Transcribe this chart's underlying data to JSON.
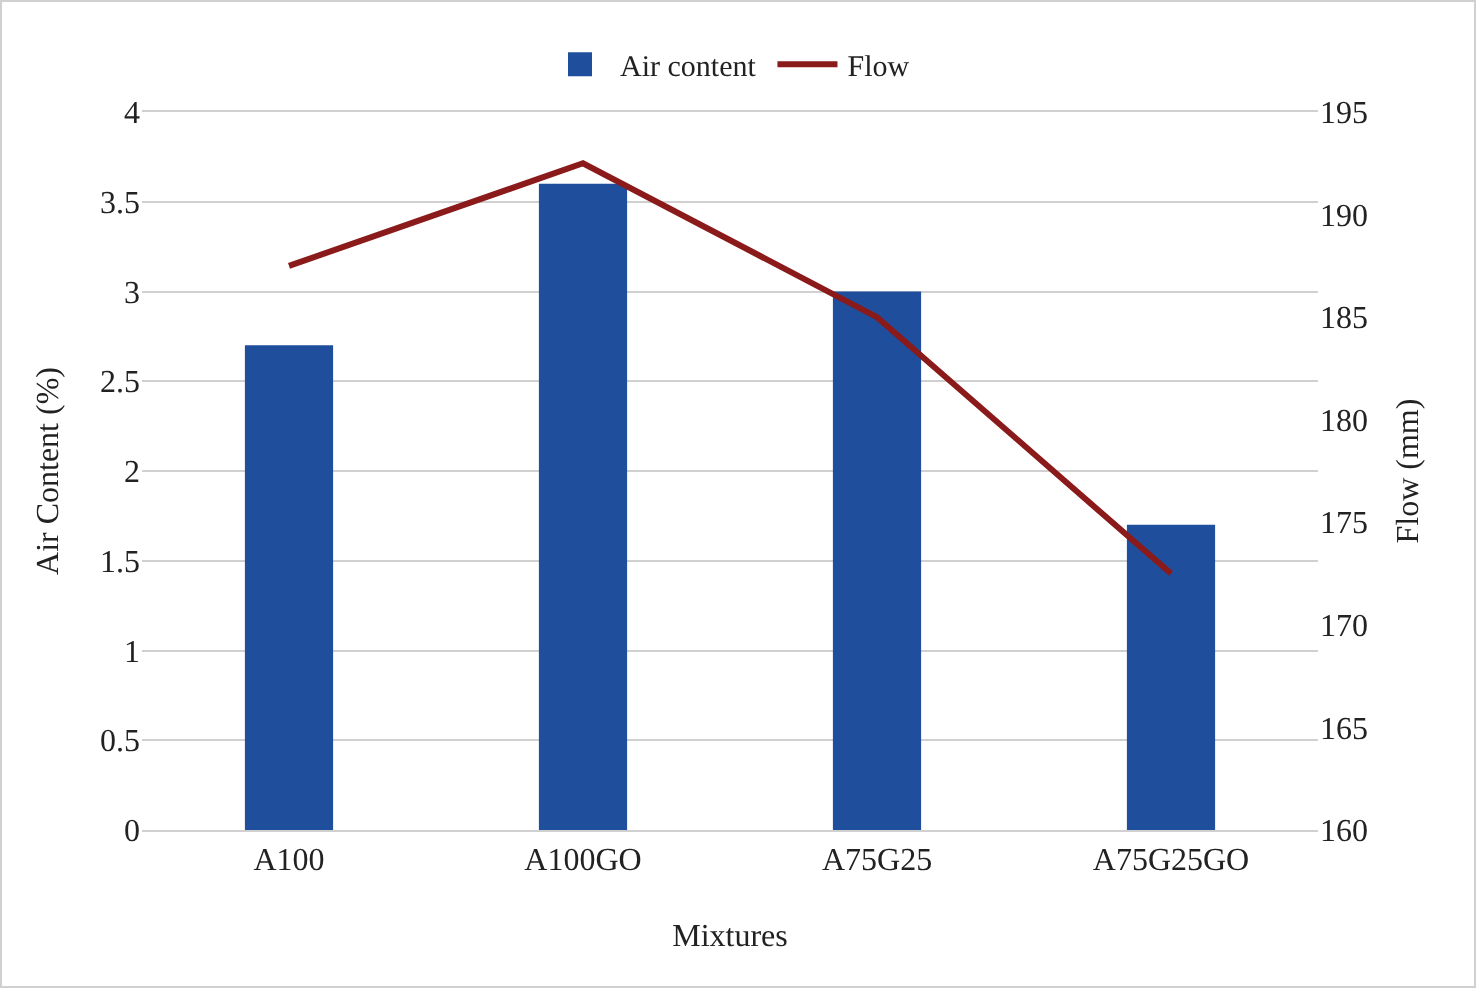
{
  "chart_data": {
    "type": "bar",
    "categories": [
      "A100",
      "A100GO",
      "A75G25",
      "A75G25GO"
    ],
    "xlabel": "Mixtures",
    "ylabel": "Air Content (%)",
    "y2label": "Flow (mm)",
    "series": [
      {
        "name": "Air content",
        "color": "#1f4e9c",
        "values": [
          2.7,
          3.6,
          3.0,
          1.7
        ]
      },
      {
        "name": "Flow",
        "type": "line",
        "axis": "y2",
        "color": "#8b1a1a",
        "values": [
          187.5,
          192.5,
          185,
          172.5
        ]
      }
    ],
    "ylim": [
      0,
      4
    ],
    "yticks": [
      0,
      {
        "value": 0.5,
        "label": "0.5"
      },
      1,
      {
        "value": 1.5,
        "label": "1.5"
      },
      2,
      {
        "value": 2.5,
        "label": "2.5"
      },
      3,
      {
        "value": 3.5,
        "label": "3.5"
      },
      4
    ],
    "y2lim": [
      160,
      195
    ],
    "y2ticks": [
      160,
      165,
      170,
      175,
      180,
      185,
      190,
      195
    ],
    "grid": "y",
    "legend": "top",
    "marker": "none",
    "line_style": "solid"
  }
}
